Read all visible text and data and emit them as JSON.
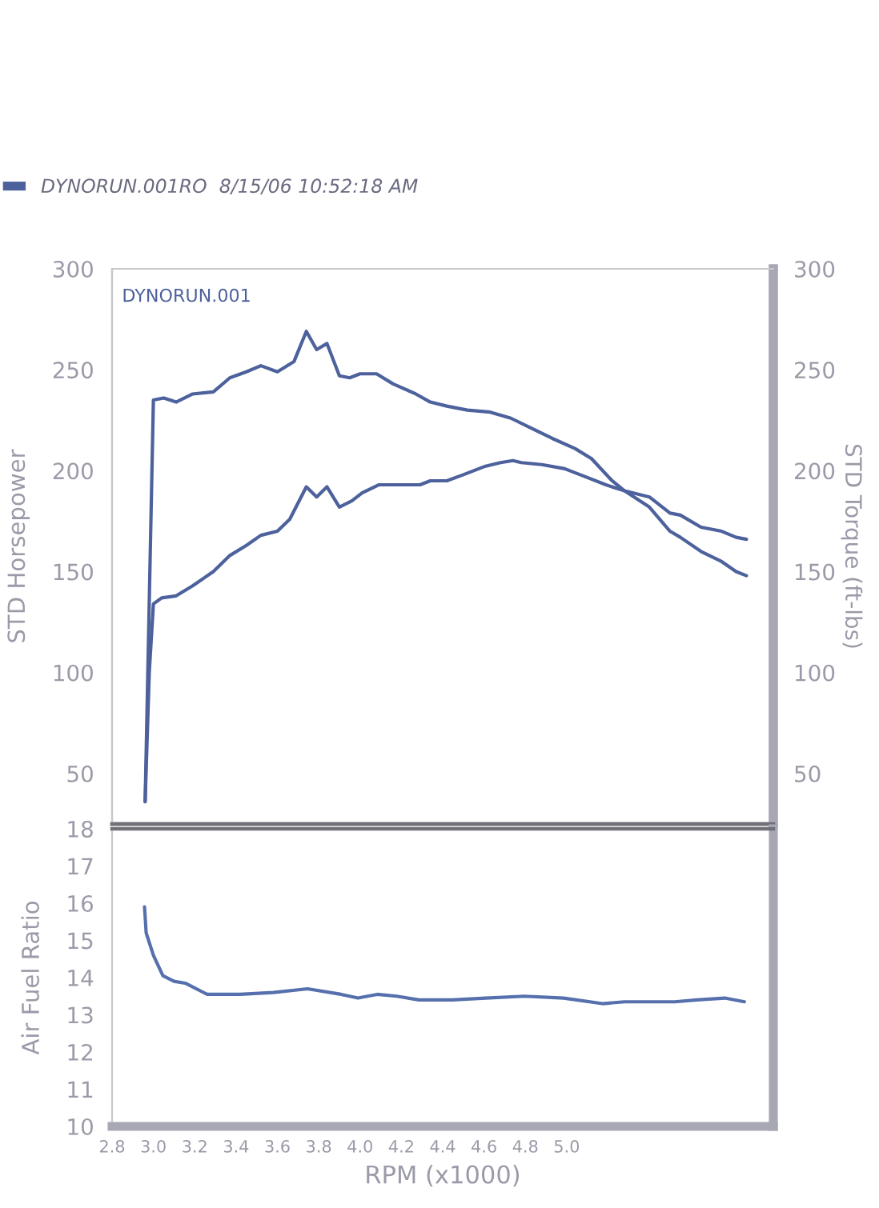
{
  "chart_data": [
    {
      "type": "line",
      "ylabel": "STD Horsepower",
      "y2label": "STD Torque (ft-lbs)",
      "annotations": [
        "DYNORUN.001"
      ],
      "legend": "top left",
      "tick_labels": "y",
      "xlim": [
        2.8,
        6.0
      ],
      "ylim": [
        25,
        300
      ],
      "yticks": [
        50,
        100,
        150,
        200,
        250,
        300
      ],
      "y2lim": [
        25,
        300
      ],
      "y2ticks": [
        50,
        100,
        150,
        200,
        250,
        300
      ],
      "series": [
        {
          "name": "DYNORUN.001RO  8/15/06 10:52:18 AM",
          "color": "#4d619c",
          "x": [
            2.96,
            2.98,
            3.0,
            3.04,
            3.11,
            3.19,
            3.29,
            3.37,
            3.45,
            3.52,
            3.6,
            3.66,
            3.74,
            3.79,
            3.84,
            3.9,
            3.96,
            4.01,
            4.09,
            4.19,
            4.29,
            4.34,
            4.42,
            4.5,
            4.6,
            4.68,
            4.74,
            4.78,
            4.88,
            4.99,
            5.09,
            5.19,
            5.28,
            5.4,
            5.5,
            5.55,
            5.65,
            5.75,
            5.82,
            5.87
          ],
          "values": [
            36,
            100,
            134,
            137,
            138,
            143,
            150,
            158,
            163,
            168,
            170,
            176,
            192,
            187,
            192,
            182,
            185,
            189,
            193,
            193,
            193,
            195,
            195,
            198,
            202,
            204,
            205,
            204,
            203,
            201,
            197,
            193,
            190,
            187,
            179,
            178,
            172,
            170,
            167,
            166
          ]
        },
        {
          "axis": "y2",
          "color": "#4d619c",
          "x": [
            2.96,
            3.0,
            3.05,
            3.11,
            3.19,
            3.29,
            3.37,
            3.45,
            3.52,
            3.6,
            3.68,
            3.74,
            3.79,
            3.84,
            3.9,
            3.95,
            4.0,
            4.08,
            4.16,
            4.27,
            4.34,
            4.42,
            4.52,
            4.63,
            4.73,
            4.83,
            4.93,
            5.04,
            5.12,
            5.22,
            5.28,
            5.4,
            5.5,
            5.55,
            5.65,
            5.75,
            5.82,
            5.87
          ],
          "values": [
            36,
            235,
            236,
            234,
            238,
            239,
            246,
            249,
            252,
            249,
            254,
            269,
            260,
            263,
            247,
            246,
            248,
            248,
            243,
            238,
            234,
            232,
            230,
            229,
            226,
            221,
            216,
            211,
            206,
            195,
            190,
            182,
            170,
            167,
            160,
            155,
            150,
            148
          ]
        }
      ]
    },
    {
      "type": "line",
      "xlabel": "RPM (x1000)",
      "ylabel": "Air Fuel Ratio",
      "xlim": [
        2.8,
        6.0
      ],
      "xticks": [
        2.8,
        {
          "value": 3,
          "label": "3.0"
        },
        3.2,
        3.4,
        3.6,
        3.8,
        {
          "value": 4,
          "label": "4.0"
        },
        4.2,
        4.4,
        4.6,
        4.8,
        {
          "value": 5,
          "label": "5.0"
        }
      ],
      "ylim": [
        10,
        18
      ],
      "yticks": [
        10,
        11,
        12,
        13,
        14,
        15,
        16,
        17,
        18
      ],
      "series": [
        {
          "color": "#5570ad",
          "x": [
            2.957,
            2.965,
            3.0,
            3.046,
            3.1,
            3.154,
            3.26,
            3.42,
            3.58,
            3.746,
            3.908,
            3.99,
            4.083,
            4.177,
            4.285,
            4.446,
            4.608,
            4.796,
            4.985,
            5.173,
            5.28,
            5.523,
            5.63,
            5.765,
            5.86
          ],
          "values": [
            15.9,
            15.2,
            14.6,
            14.05,
            13.9,
            13.85,
            13.55,
            13.55,
            13.6,
            13.7,
            13.55,
            13.45,
            13.55,
            13.5,
            13.4,
            13.4,
            13.45,
            13.5,
            13.45,
            13.3,
            13.35,
            13.35,
            13.4,
            13.45,
            13.35
          ]
        }
      ]
    }
  ]
}
